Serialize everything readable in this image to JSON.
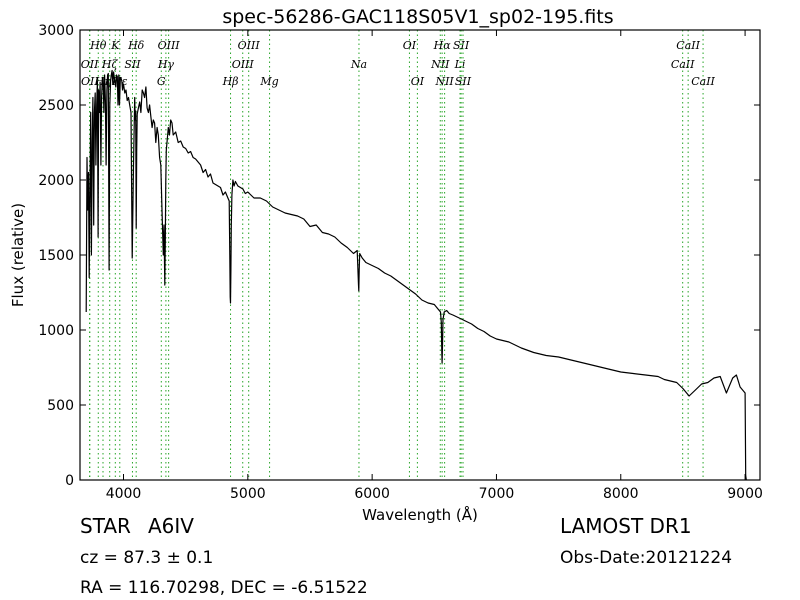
{
  "chart_data": {
    "type": "line",
    "title": "spec-56286-GAC118S05V1_sp02-195.fits",
    "xlabel": "Wavelength (Å)",
    "ylabel": "Flux (relative)",
    "xlim": [
      3650,
      9120
    ],
    "ylim": [
      0,
      3000
    ],
    "xticks": [
      4000,
      5000,
      6000,
      7000,
      8000,
      9000
    ],
    "yticks": [
      0,
      500,
      1000,
      1500,
      2000,
      2500,
      3000
    ],
    "grid": false,
    "series": [
      {
        "color": "#000000",
        "x": [
          3700,
          3706,
          3712,
          3718,
          3724,
          3730,
          3736,
          3742,
          3748,
          3754,
          3760,
          3766,
          3772,
          3778,
          3784,
          3790,
          3796,
          3800,
          3806,
          3812,
          3818,
          3824,
          3830,
          3836,
          3842,
          3848,
          3854,
          3860,
          3866,
          3872,
          3878,
          3884,
          3890,
          3896,
          3902,
          3908,
          3914,
          3920,
          3926,
          3932,
          3938,
          3944,
          3950,
          3956,
          3962,
          3968,
          3974,
          3980,
          3986,
          3992,
          4000,
          4010,
          4020,
          4030,
          4040,
          4050,
          4060,
          4070,
          4080,
          4090,
          4094,
          4098,
          4102,
          4106,
          4110,
          4120,
          4130,
          4140,
          4150,
          4160,
          4170,
          4180,
          4190,
          4200,
          4210,
          4220,
          4230,
          4240,
          4250,
          4260,
          4270,
          4280,
          4290,
          4300,
          4310,
          4320,
          4326,
          4332,
          4336,
          4340,
          4344,
          4350,
          4360,
          4370,
          4380,
          4390,
          4400,
          4420,
          4440,
          4460,
          4480,
          4500,
          4520,
          4540,
          4560,
          4580,
          4600,
          4620,
          4640,
          4660,
          4680,
          4700,
          4720,
          4740,
          4760,
          4780,
          4800,
          4820,
          4840,
          4850,
          4855,
          4858,
          4861,
          4864,
          4867,
          4872,
          4880,
          4890,
          4900,
          4920,
          4940,
          4960,
          4980,
          5000,
          5050,
          5100,
          5150,
          5200,
          5250,
          5300,
          5350,
          5400,
          5450,
          5500,
          5550,
          5600,
          5650,
          5700,
          5750,
          5800,
          5850,
          5880,
          5890,
          5893,
          5896,
          5900,
          5920,
          5950,
          6000,
          6050,
          6100,
          6150,
          6200,
          6250,
          6300,
          6350,
          6400,
          6450,
          6500,
          6530,
          6550,
          6556,
          6560,
          6563,
          6566,
          6570,
          6580,
          6600,
          6620,
          6650,
          6700,
          6750,
          6800,
          6850,
          6900,
          6950,
          7000,
          7100,
          7200,
          7300,
          7400,
          7500,
          7600,
          7700,
          7800,
          7900,
          8000,
          8100,
          8200,
          8300,
          8350,
          8400,
          8450,
          8500,
          8550,
          8600,
          8650,
          8700,
          8750,
          8800,
          8850,
          8900,
          8930,
          8960,
          8980,
          9000,
          9005,
          9010
        ],
        "values": [
          1120,
          2150,
          1800,
          2050,
          1350,
          1900,
          2450,
          1500,
          2250,
          2550,
          1700,
          2450,
          2580,
          2100,
          2500,
          2660,
          1620,
          2600,
          2450,
          2650,
          2100,
          2550,
          2680,
          2680,
          2450,
          2700,
          2530,
          2100,
          2600,
          2700,
          2710,
          1400,
          2500,
          2660,
          2700,
          2730,
          2640,
          2720,
          2680,
          2650,
          2620,
          2700,
          2690,
          2500,
          2700,
          2500,
          2670,
          2680,
          2660,
          2600,
          2640,
          2580,
          2600,
          2530,
          2550,
          2500,
          2450,
          1480,
          2100,
          2550,
          2400,
          2460,
          1680,
          2200,
          2440,
          2480,
          2520,
          2450,
          2600,
          2580,
          2550,
          2620,
          2480,
          2450,
          2500,
          2420,
          2350,
          2400,
          2380,
          2250,
          2350,
          2300,
          2150,
          2100,
          1800,
          1500,
          1700,
          1300,
          1600,
          2000,
          2200,
          2250,
          2350,
          2300,
          2400,
          2380,
          2300,
          2320,
          2250,
          2260,
          2220,
          2210,
          2180,
          2190,
          2150,
          2140,
          2120,
          2100,
          2050,
          2070,
          2020,
          2040,
          1980,
          1970,
          1960,
          1950,
          1900,
          1920,
          1880,
          1860,
          1500,
          1220,
          1180,
          1400,
          1700,
          1900,
          2000,
          1960,
          1990,
          1960,
          1950,
          1940,
          1910,
          1920,
          1880,
          1880,
          1860,
          1820,
          1800,
          1780,
          1770,
          1760,
          1740,
          1690,
          1700,
          1650,
          1640,
          1620,
          1580,
          1550,
          1510,
          1530,
          1300,
          1260,
          1400,
          1510,
          1480,
          1450,
          1430,
          1410,
          1380,
          1360,
          1330,
          1300,
          1270,
          1240,
          1200,
          1180,
          1170,
          1140,
          1120,
          1050,
          850,
          780,
          900,
          1070,
          1120,
          1130,
          1110,
          1100,
          1080,
          1060,
          1040,
          1010,
          990,
          960,
          940,
          920,
          880,
          850,
          830,
          820,
          800,
          780,
          760,
          740,
          720,
          710,
          700,
          690,
          670,
          660,
          650,
          610,
          560,
          600,
          640,
          650,
          680,
          690,
          580,
          680,
          700,
          620,
          600,
          580,
          30,
          0
        ]
      }
    ],
    "line_color": "#27a527",
    "emission_lines": [
      {
        "x": 3727,
        "name": "OII",
        "row": 1
      },
      {
        "x": 3729,
        "name": "OII",
        "row": 2
      },
      {
        "x": 3797,
        "name": "Hθ",
        "row": 0
      },
      {
        "x": 3835,
        "name": "Hη",
        "row": 2
      },
      {
        "x": 3889,
        "name": "Hζ",
        "row": 1
      },
      {
        "x": 3934,
        "name": "K",
        "row": 0
      },
      {
        "x": 3970,
        "name": "Hε",
        "row": 2
      },
      {
        "x": 4072,
        "name": "SII",
        "row": 1
      },
      {
        "x": 4102,
        "name": "Hδ",
        "row": 0
      },
      {
        "x": 4304,
        "name": "G",
        "row": 2
      },
      {
        "x": 4341,
        "name": "Hγ",
        "row": 1
      },
      {
        "x": 4363,
        "name": "OIII",
        "row": 0
      },
      {
        "x": 4861,
        "name": "Hβ",
        "row": 2
      },
      {
        "x": 4959,
        "name": "OIII",
        "row": 1
      },
      {
        "x": 5007,
        "name": "OIII",
        "row": 0
      },
      {
        "x": 5175,
        "name": "Mg",
        "row": 2
      },
      {
        "x": 5894,
        "name": "Na",
        "row": 1
      },
      {
        "x": 6300,
        "name": "OI",
        "row": 0
      },
      {
        "x": 6364,
        "name": "OI",
        "row": 2
      },
      {
        "x": 6548,
        "name": "NII",
        "row": 1
      },
      {
        "x": 6563,
        "name": "Hα",
        "row": 0
      },
      {
        "x": 6583,
        "name": "NII",
        "row": 2
      },
      {
        "x": 6707,
        "name": "Li",
        "row": 1
      },
      {
        "x": 6716,
        "name": "SII",
        "row": 0
      },
      {
        "x": 6731,
        "name": "SII",
        "row": 2
      },
      {
        "x": 8498,
        "name": "CaII",
        "row": 1
      },
      {
        "x": 8542,
        "name": "CaII",
        "row": 0
      },
      {
        "x": 8662,
        "name": "CaII",
        "row": 2
      }
    ]
  },
  "info": {
    "object_class": "STAR",
    "subclass": "A6IV",
    "survey": "LAMOST DR1",
    "cz": "cz = 87.3 ± 0.1",
    "obs_date": "Obs-Date:20121224",
    "coords": "RA = 116.70298, DEC = -6.51522"
  }
}
